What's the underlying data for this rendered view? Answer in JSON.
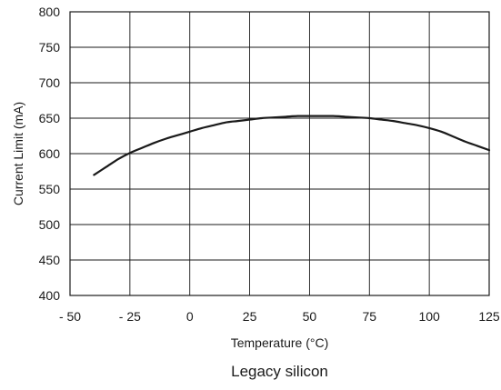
{
  "chart_data": {
    "type": "line",
    "title": "",
    "caption": "Legacy silicon",
    "xlabel": "Temperature (°C)",
    "ylabel": "Current Limit (mA)",
    "xlim": [
      -50,
      125
    ],
    "ylim": [
      400,
      800
    ],
    "x_ticks": [
      -50,
      -25,
      0,
      25,
      50,
      75,
      100,
      125
    ],
    "x_tick_labels": [
      "- 50",
      "- 25",
      "0",
      "25",
      "50",
      "75",
      "100",
      "125"
    ],
    "y_ticks": [
      400,
      450,
      500,
      550,
      600,
      650,
      700,
      750,
      800
    ],
    "y_tick_labels": [
      "400",
      "450",
      "500",
      "550",
      "600",
      "650",
      "700",
      "750",
      "800"
    ],
    "grid": true,
    "legend": "none",
    "series": [
      {
        "color": "#1a1a1a",
        "x": [
          -40,
          -35,
          -30,
          -25,
          -20,
          -15,
          -10,
          -5,
          0,
          5,
          10,
          15,
          20,
          25,
          30,
          35,
          40,
          45,
          50,
          55,
          60,
          65,
          70,
          75,
          80,
          85,
          90,
          95,
          100,
          105,
          110,
          115,
          120,
          125
        ],
        "y": [
          570,
          581,
          592,
          601,
          608,
          615,
          621,
          626,
          631,
          636,
          640,
          644,
          646,
          648,
          650,
          651,
          652,
          653,
          653,
          653,
          653,
          652,
          651,
          650,
          648,
          646,
          643,
          640,
          636,
          631,
          624,
          617,
          611,
          605
        ]
      }
    ]
  }
}
